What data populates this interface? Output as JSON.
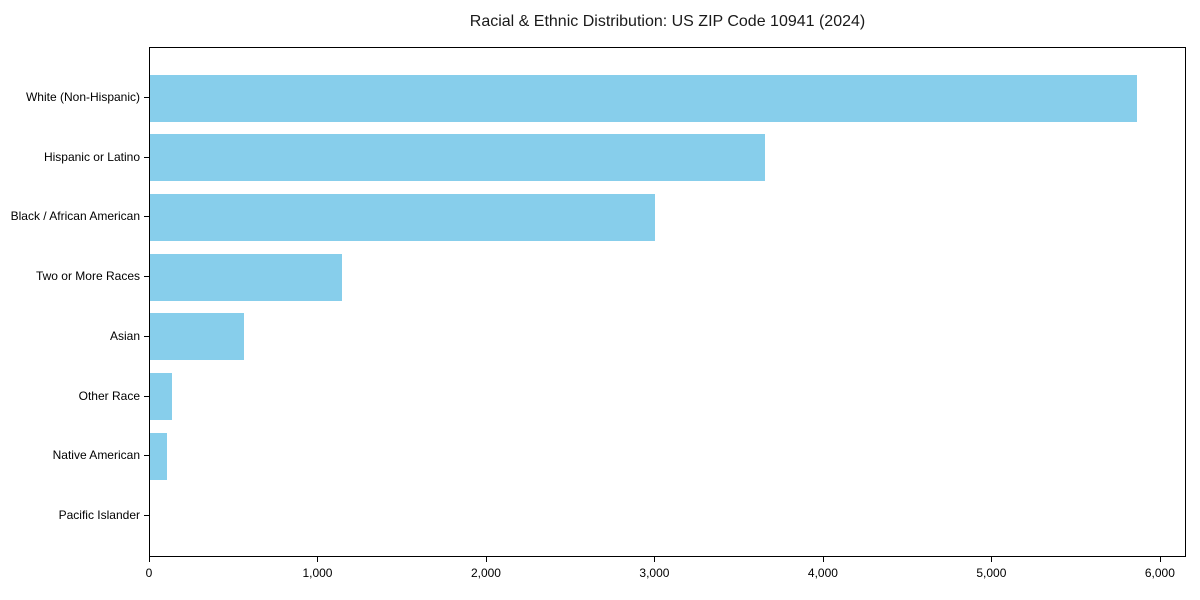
{
  "figure": {
    "background_color": "#ffffff",
    "spine_color": "#000000"
  },
  "chart_data": {
    "type": "bar",
    "orientation": "horizontal",
    "title": "Racial & Ethnic Distribution: US ZIP Code 10941 (2024)",
    "categories": [
      "White (Non-Hispanic)",
      "Hispanic or Latino",
      "Black / African American",
      "Two or More Races",
      "Asian",
      "Other Race",
      "Native American",
      "Pacific Islander"
    ],
    "values": [
      5860,
      3650,
      3000,
      1140,
      560,
      130,
      100,
      0
    ],
    "xlabel": "",
    "ylabel": "",
    "xlim": [
      0,
      6155
    ],
    "x_ticks": [
      0,
      1000,
      2000,
      3000,
      4000,
      5000,
      6000
    ],
    "x_tick_labels": [
      "0",
      "1,000",
      "2,000",
      "3,000",
      "4,000",
      "5,000",
      "6,000"
    ],
    "bar_color": "#87CEEB",
    "grid": false,
    "legend": null
  }
}
